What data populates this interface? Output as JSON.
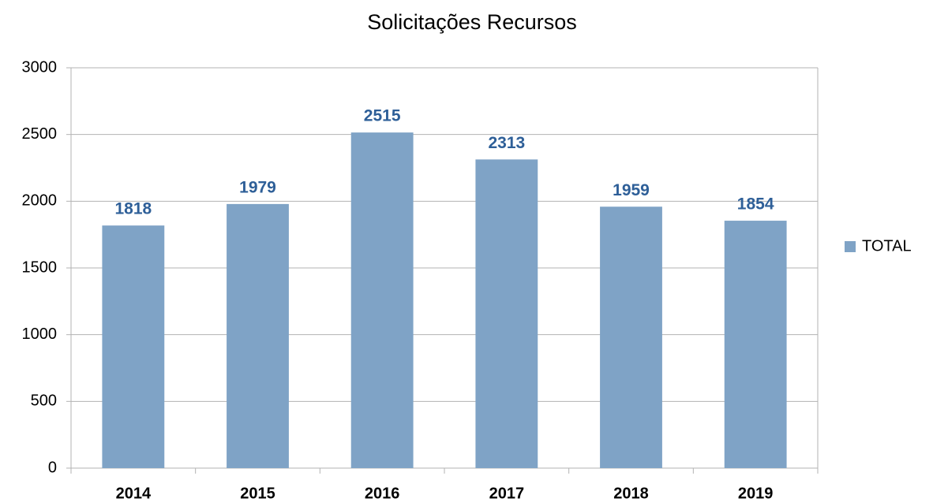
{
  "chart_data": {
    "type": "bar",
    "title": "Solicitações Recursos",
    "categories": [
      "2014",
      "2015",
      "2016",
      "2017",
      "2018",
      "2019"
    ],
    "series": [
      {
        "name": "TOTAL",
        "color": "#7fa3c6",
        "values": [
          1818,
          1979,
          2515,
          2313,
          1959,
          1854
        ]
      }
    ],
    "ylim": [
      0,
      3000
    ],
    "yticks": [
      0,
      500,
      1000,
      1500,
      2000,
      2500,
      3000
    ],
    "grid": true,
    "legend": "right",
    "data_labels": true
  }
}
